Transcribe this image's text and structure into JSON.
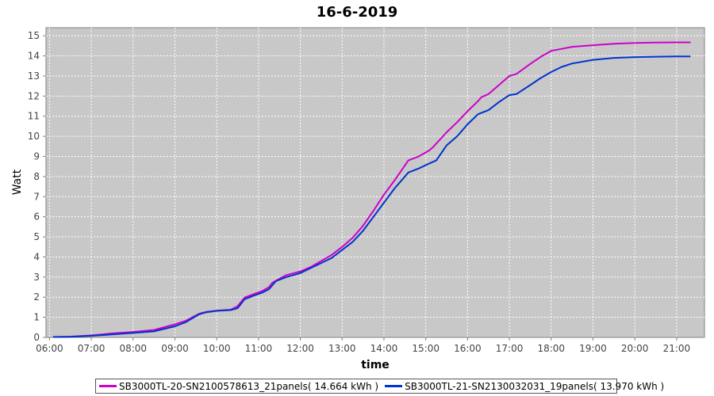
{
  "chart_data": {
    "type": "line",
    "title": "16-6-2019",
    "xlabel": "time",
    "ylabel": "Watt",
    "xlim": [
      "05:55",
      "21:40"
    ],
    "ylim": [
      0,
      15.4
    ],
    "x_ticks": [
      "06:00",
      "07:00",
      "08:00",
      "09:00",
      "10:00",
      "11:00",
      "12:00",
      "13:00",
      "14:00",
      "15:00",
      "16:00",
      "17:00",
      "18:00",
      "19:00",
      "20:00",
      "21:00"
    ],
    "y_ticks": [
      0,
      1,
      2,
      3,
      4,
      5,
      6,
      7,
      8,
      9,
      10,
      11,
      12,
      13,
      14,
      15
    ],
    "grid": true,
    "legend_position": "bottom",
    "series": [
      {
        "name": "SB3000TL-20-SN2100578613_21panels( 14.664 kWh )",
        "color": "#cc00cc",
        "x": [
          "06:05",
          "06:30",
          "07:00",
          "07:30",
          "08:00",
          "08:30",
          "09:00",
          "09:15",
          "09:35",
          "09:45",
          "10:00",
          "10:20",
          "10:30",
          "10:40",
          "10:55",
          "11:05",
          "11:15",
          "11:20",
          "11:40",
          "12:00",
          "12:15",
          "12:30",
          "12:45",
          "13:00",
          "13:15",
          "13:30",
          "13:45",
          "14:00",
          "14:15",
          "14:35",
          "14:50",
          "15:05",
          "15:10",
          "15:30",
          "15:45",
          "16:00",
          "16:15",
          "16:20",
          "16:30",
          "16:45",
          "17:00",
          "17:10",
          "17:30",
          "17:45",
          "18:00",
          "18:15",
          "18:30",
          "19:00",
          "19:30",
          "20:00",
          "20:30",
          "21:00",
          "21:20"
        ],
        "values": [
          0.02,
          0.04,
          0.1,
          0.2,
          0.27,
          0.37,
          0.65,
          0.82,
          1.18,
          1.27,
          1.33,
          1.38,
          1.55,
          1.98,
          2.18,
          2.3,
          2.5,
          2.72,
          3.1,
          3.28,
          3.5,
          3.8,
          4.1,
          4.5,
          4.95,
          5.55,
          6.3,
          7.1,
          7.8,
          8.8,
          9.0,
          9.3,
          9.45,
          10.2,
          10.7,
          11.25,
          11.75,
          11.95,
          12.1,
          12.55,
          13.0,
          13.1,
          13.6,
          13.95,
          14.25,
          14.35,
          14.45,
          14.53,
          14.6,
          14.64,
          14.66,
          14.67,
          14.67
        ]
      },
      {
        "name": "SB3000TL-21-SN2130032031_19panels( 13.970 kWh )",
        "color": "#0033cc",
        "x": [
          "06:05",
          "06:30",
          "07:00",
          "07:30",
          "08:00",
          "08:30",
          "09:00",
          "09:15",
          "09:35",
          "09:45",
          "10:00",
          "10:20",
          "10:30",
          "10:40",
          "10:55",
          "11:05",
          "11:15",
          "11:25",
          "11:40",
          "12:00",
          "12:15",
          "12:30",
          "12:45",
          "13:00",
          "13:15",
          "13:30",
          "13:45",
          "14:00",
          "14:15",
          "14:35",
          "14:50",
          "15:05",
          "15:15",
          "15:30",
          "15:45",
          "16:00",
          "16:15",
          "16:30",
          "16:45",
          "17:00",
          "17:10",
          "17:30",
          "17:45",
          "18:00",
          "18:15",
          "18:30",
          "19:00",
          "19:30",
          "20:00",
          "20:30",
          "21:00",
          "21:20"
        ],
        "values": [
          0.02,
          0.03,
          0.08,
          0.15,
          0.22,
          0.3,
          0.55,
          0.75,
          1.15,
          1.25,
          1.32,
          1.36,
          1.45,
          1.9,
          2.1,
          2.22,
          2.4,
          2.8,
          3.0,
          3.2,
          3.45,
          3.7,
          3.95,
          4.35,
          4.75,
          5.3,
          6.0,
          6.7,
          7.4,
          8.2,
          8.4,
          8.65,
          8.8,
          9.55,
          10.0,
          10.6,
          11.1,
          11.3,
          11.7,
          12.05,
          12.1,
          12.55,
          12.9,
          13.2,
          13.45,
          13.62,
          13.8,
          13.9,
          13.94,
          13.96,
          13.97,
          13.97
        ]
      }
    ]
  }
}
